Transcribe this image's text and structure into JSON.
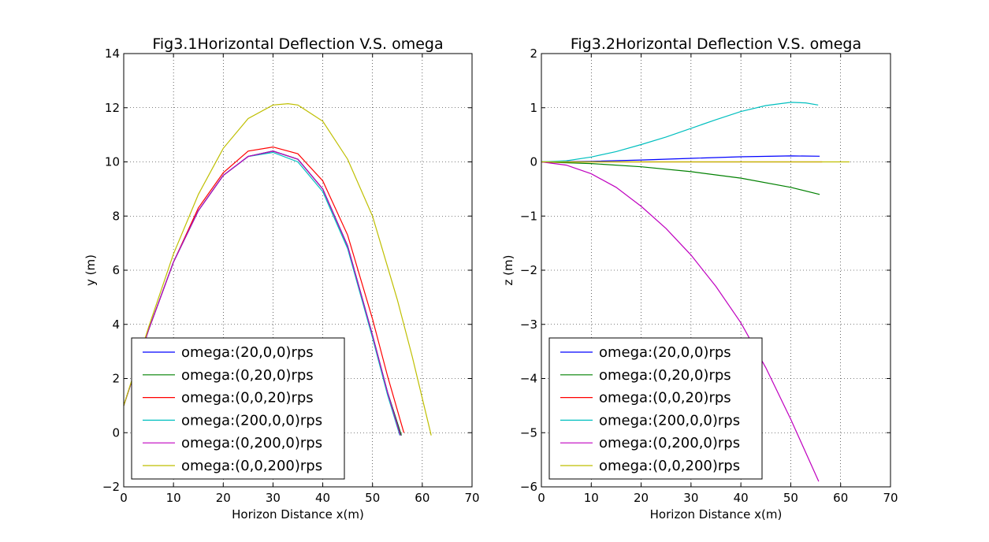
{
  "chart_data": [
    {
      "type": "line",
      "title": "Fig3.1Horizontal Deflection V.S. omega",
      "xlabel": "Horizon Distance x(m)",
      "ylabel": "y (m)",
      "xlim": [
        0,
        70
      ],
      "ylim": [
        -2,
        14
      ],
      "xticks": [
        "0",
        "10",
        "20",
        "30",
        "40",
        "50",
        "60",
        "70"
      ],
      "yticks": [
        "−2",
        "0",
        "2",
        "4",
        "6",
        "8",
        "10",
        "12",
        "14"
      ],
      "grid": true,
      "legend_position": "lower-left",
      "series": [
        {
          "name": "omega:(20,0,0)rps",
          "color": "#0000ff",
          "x": [
            0,
            5,
            10,
            15,
            20,
            25,
            30,
            35,
            40,
            45,
            50,
            53,
            55.8
          ],
          "y": [
            1.0,
            3.8,
            6.3,
            8.2,
            9.5,
            10.2,
            10.4,
            10.1,
            9.0,
            6.9,
            3.6,
            1.5,
            -0.1
          ]
        },
        {
          "name": "omega:(0,20,0)rps",
          "color": "#008000",
          "x": [
            0,
            5,
            10,
            15,
            20,
            25,
            30,
            35,
            40,
            45,
            50,
            53,
            55.8
          ],
          "y": [
            1.0,
            3.8,
            6.3,
            8.2,
            9.5,
            10.2,
            10.4,
            10.1,
            9.0,
            6.9,
            3.6,
            1.5,
            -0.1
          ]
        },
        {
          "name": "omega:(0,0,20)",
          "color": "#ff0000",
          "x": [
            0,
            5,
            10,
            15,
            20,
            25,
            30,
            35,
            40,
            45,
            50,
            53,
            56.3
          ],
          "y": [
            1.0,
            3.8,
            6.3,
            8.3,
            9.6,
            10.4,
            10.55,
            10.3,
            9.3,
            7.3,
            4.2,
            2.1,
            0.0
          ]
        },
        {
          "name": "omega:(200,0,0)rps",
          "color": "#00bfbf",
          "x": [
            0,
            5,
            10,
            15,
            20,
            25,
            30,
            35,
            40,
            45,
            50,
            53,
            55.5
          ],
          "y": [
            1.0,
            3.8,
            6.3,
            8.2,
            9.5,
            10.2,
            10.35,
            10.0,
            8.9,
            6.8,
            3.5,
            1.4,
            -0.1
          ]
        },
        {
          "name": "omega:(0,200,0)rps",
          "color": "#bf00bf",
          "x": [
            0,
            5,
            10,
            15,
            20,
            25,
            30,
            35,
            40,
            45,
            50,
            53,
            55.6
          ],
          "y": [
            1.0,
            3.8,
            6.3,
            8.2,
            9.5,
            10.2,
            10.4,
            10.1,
            9.0,
            6.9,
            3.6,
            1.5,
            -0.1
          ]
        },
        {
          "name": "omega:(0,0,200)rps",
          "color": "#bfbf00",
          "x": [
            0,
            5,
            10,
            15,
            20,
            25,
            30,
            33,
            35,
            40,
            45,
            50,
            55,
            58,
            61.8
          ],
          "y": [
            1.0,
            3.9,
            6.6,
            8.8,
            10.5,
            11.6,
            12.1,
            12.15,
            12.1,
            11.5,
            10.1,
            8.0,
            4.9,
            2.8,
            -0.1
          ]
        }
      ]
    },
    {
      "type": "line",
      "title": "Fig3.2Horizontal Deflection V.S. omega",
      "xlabel": "Horizon Distance x(m)",
      "ylabel": "z (m)",
      "xlim": [
        0,
        70
      ],
      "ylim": [
        -6,
        2
      ],
      "xticks": [
        "0",
        "10",
        "20",
        "30",
        "40",
        "50",
        "60",
        "70"
      ],
      "yticks": [
        "−6",
        "−5",
        "−4",
        "−3",
        "−2",
        "−1",
        "0",
        "1",
        "2"
      ],
      "grid": true,
      "legend_position": "lower-left",
      "series": [
        {
          "name": "omega:(20,0,0)rps",
          "color": "#0000ff",
          "x": [
            0,
            10,
            20,
            30,
            40,
            50,
            55.8
          ],
          "y": [
            0,
            0.01,
            0.035,
            0.065,
            0.095,
            0.11,
            0.105
          ]
        },
        {
          "name": "omega:(0,20,0)rps",
          "color": "#008000",
          "x": [
            0,
            10,
            20,
            30,
            40,
            50,
            55.8
          ],
          "y": [
            0,
            -0.03,
            -0.09,
            -0.18,
            -0.3,
            -0.47,
            -0.6
          ]
        },
        {
          "name": "omega:(0,0,20)rps",
          "color": "#ff0000",
          "x": [
            0,
            10,
            20,
            30,
            40,
            50,
            56.3
          ],
          "y": [
            0,
            0,
            0,
            0,
            0,
            0,
            0
          ]
        },
        {
          "name": "omega:(200,0,0)rps",
          "color": "#00bfbf",
          "x": [
            0,
            5,
            10,
            15,
            20,
            25,
            30,
            35,
            40,
            45,
            50,
            53,
            55.5
          ],
          "y": [
            0,
            0.02,
            0.09,
            0.19,
            0.32,
            0.46,
            0.62,
            0.78,
            0.93,
            1.04,
            1.1,
            1.09,
            1.05
          ]
        },
        {
          "name": "omega:(0,200,0)rps",
          "color": "#bf00bf",
          "x": [
            0,
            5,
            10,
            15,
            20,
            25,
            30,
            35,
            40,
            45,
            50,
            55.6
          ],
          "y": [
            0,
            -0.06,
            -0.22,
            -0.47,
            -0.82,
            -1.23,
            -1.72,
            -2.3,
            -2.97,
            -3.8,
            -4.75,
            -5.9
          ]
        },
        {
          "name": "omega:(0,0,200)rps",
          "color": "#bfbf00",
          "x": [
            0,
            10,
            20,
            30,
            40,
            50,
            61.8
          ],
          "y": [
            0,
            0,
            0,
            0,
            0,
            0,
            0
          ]
        }
      ]
    }
  ],
  "legend_labels": [
    "omega:(20,0,0)rps",
    "omega:(0,20,0)rps",
    "omega:(0,0,20)rps",
    "omega:(200,0,0)rps",
    "omega:(0,200,0)rps",
    "omega:(0,0,200)rps"
  ]
}
